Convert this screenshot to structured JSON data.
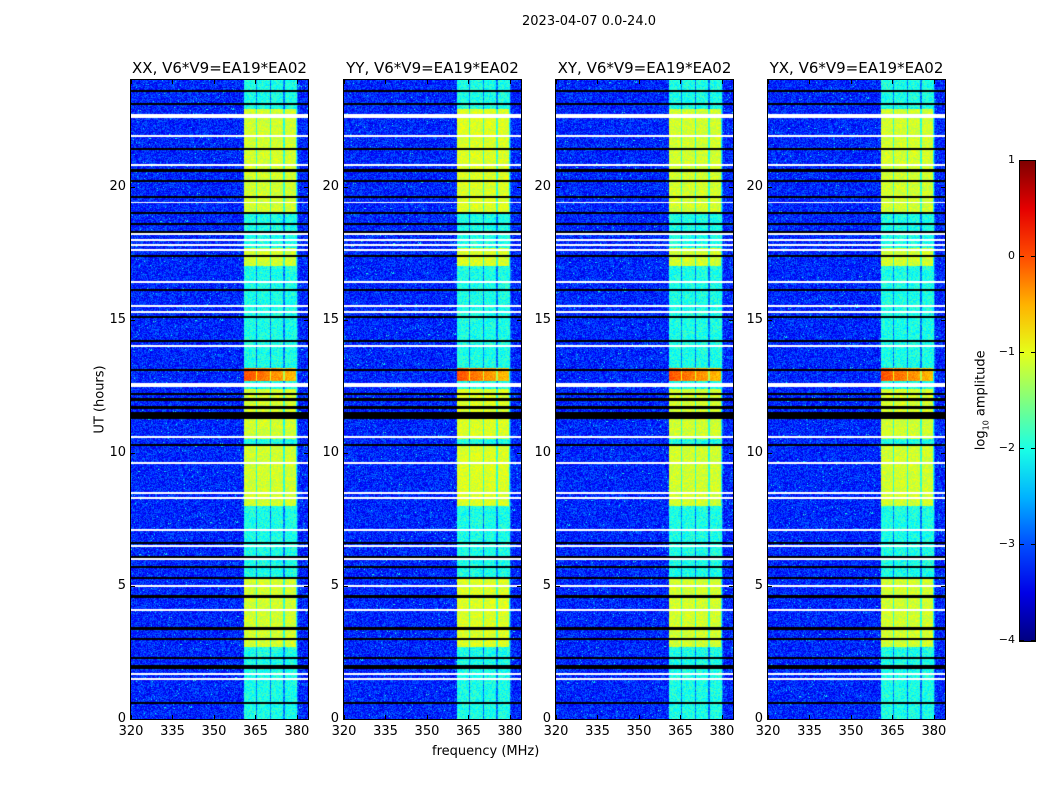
{
  "chart_data": {
    "type": "heatmap",
    "suptitle": "2023-04-07 0.0-24.0",
    "xlabel": "frequency (MHz)",
    "ylabel": "UT (hours)",
    "xlim": [
      320,
      384
    ],
    "ylim": [
      0,
      24
    ],
    "xticks": [
      "320",
      "335",
      "350",
      "365",
      "380"
    ],
    "xtick_values": [
      320,
      335,
      350,
      365,
      380
    ],
    "yticks": [
      "0",
      "5",
      "10",
      "15",
      "20"
    ],
    "ytick_values": [
      0,
      5,
      10,
      15,
      20
    ],
    "panels": [
      {
        "title": "XX, V6*V9=EA19*EA02"
      },
      {
        "title": "YY, V6*V9=EA19*EA02"
      },
      {
        "title": "XY, V6*V9=EA19*EA02"
      },
      {
        "title": "YX, V6*V9=EA19*EA02"
      }
    ],
    "colorbar": {
      "label_main": "log",
      "label_sub": "10",
      "label_rest": " amplitude",
      "colormap": "jet",
      "range": [
        -4,
        1
      ],
      "ticks": [
        "1",
        "0",
        "−1",
        "−2",
        "−3",
        "−4"
      ],
      "tick_values": [
        1,
        0,
        -1,
        -2,
        -3,
        -4
      ]
    },
    "features": {
      "background_level": -3.2,
      "rfi_band_mhz": [
        360.7,
        380.4
      ],
      "rfi_band_level": -2.0,
      "bright_intervals_ut": [
        [
          2.7,
          5.3
        ],
        [
          8.0,
          10.3
        ],
        [
          10.5,
          12.4
        ],
        [
          17.0,
          17.7
        ],
        [
          19.0,
          22.9
        ]
      ],
      "bright_level": -1.1,
      "strong_interval_ut": [
        12.7,
        13.2
      ],
      "strong_level": 0.0,
      "flagged_white_ut": [
        1.5,
        1.7,
        4.1,
        5.0,
        6.0,
        6.5,
        7.1,
        8.3,
        8.5,
        9.6,
        10.6,
        12.5,
        12.55,
        12.6,
        14.0,
        15.3,
        15.5,
        16.4,
        17.6,
        17.8,
        18.0,
        18.2,
        19.4,
        20.8,
        21.9,
        22.6,
        22.7
      ],
      "flagged_black_ut": [
        0.6,
        1.9,
        2.0,
        2.3,
        3.0,
        3.4,
        4.6,
        5.3,
        5.7,
        6.1,
        6.6,
        10.3,
        11.3,
        11.4,
        11.5,
        11.7,
        12.0,
        12.2,
        13.1,
        14.2,
        15.1,
        16.1,
        17.4,
        18.3,
        18.6,
        19.0,
        19.6,
        20.2,
        20.6,
        21.4,
        23.1,
        23.6
      ]
    }
  }
}
